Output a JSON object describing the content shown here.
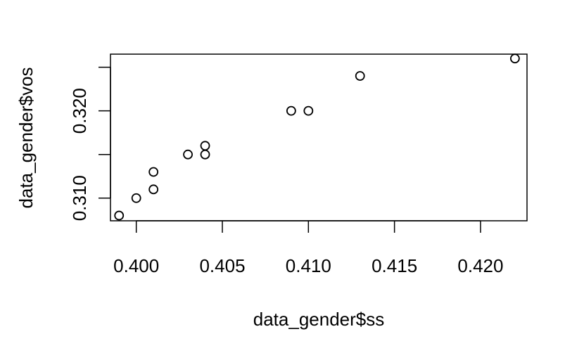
{
  "chart_data": {
    "type": "scatter",
    "title": "",
    "xlabel": "data_gender$ss",
    "ylabel": "data_gender$vos",
    "xlim": [
      0.3985,
      0.4227
    ],
    "ylim": [
      0.3074,
      0.3265
    ],
    "xticks": [
      {
        "value": 0.4,
        "label": "0.400"
      },
      {
        "value": 0.405,
        "label": "0.405"
      },
      {
        "value": 0.41,
        "label": "0.410"
      },
      {
        "value": 0.415,
        "label": "0.415"
      },
      {
        "value": 0.42,
        "label": "0.420"
      }
    ],
    "yticks": [
      {
        "value": 0.31,
        "label": "0.310"
      },
      {
        "value": 0.315,
        "label": ""
      },
      {
        "value": 0.32,
        "label": "0.320"
      },
      {
        "value": 0.325,
        "label": ""
      }
    ],
    "grid": false,
    "marker": "open-circle",
    "points": [
      {
        "x": 0.399,
        "y": 0.308
      },
      {
        "x": 0.4,
        "y": 0.31
      },
      {
        "x": 0.401,
        "y": 0.311
      },
      {
        "x": 0.401,
        "y": 0.313
      },
      {
        "x": 0.403,
        "y": 0.315
      },
      {
        "x": 0.404,
        "y": 0.315
      },
      {
        "x": 0.404,
        "y": 0.316
      },
      {
        "x": 0.409,
        "y": 0.32
      },
      {
        "x": 0.41,
        "y": 0.32
      },
      {
        "x": 0.413,
        "y": 0.324
      },
      {
        "x": 0.422,
        "y": 0.326
      }
    ],
    "colors": {
      "marker": "#000000",
      "axis": "#000000",
      "background": "#ffffff"
    }
  }
}
